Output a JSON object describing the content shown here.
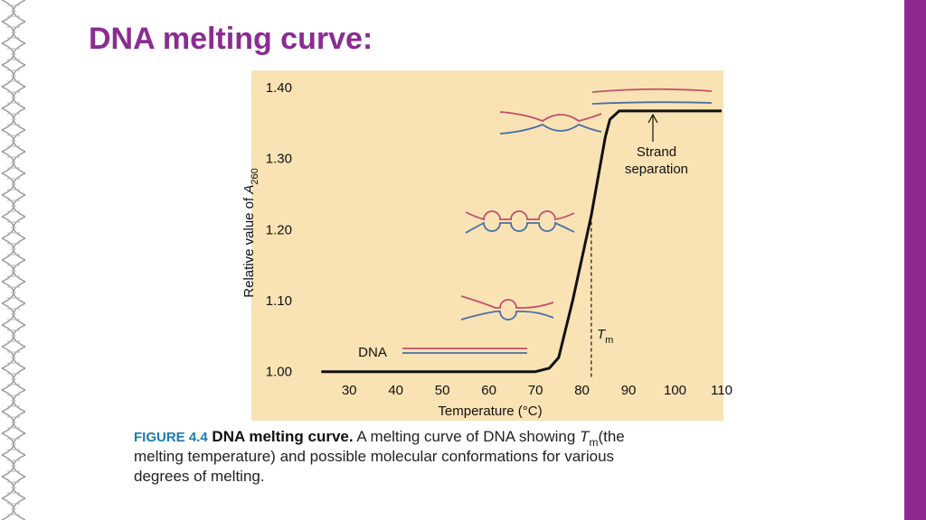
{
  "slide_title": "DNA melting curve:",
  "chart_data": {
    "type": "line",
    "xlabel": "Temperature (°C)",
    "ylabel": {
      "text": "Relative value of",
      "symbol": "A",
      "subscript": "260"
    },
    "x": [
      24,
      70,
      73,
      75,
      78,
      82,
      85,
      86,
      88,
      110
    ],
    "series": [
      {
        "color": "#111111",
        "values": [
          1.0,
          1.0,
          1.005,
          1.02,
          1.1,
          1.22,
          1.33,
          1.355,
          1.367,
          1.367
        ]
      }
    ],
    "xlim": [
      22,
      110
    ],
    "ylim": [
      0.992,
      1.424
    ],
    "xticks": [
      30,
      40,
      50,
      60,
      70,
      80,
      90,
      100,
      110
    ],
    "yticks": [
      {
        "value": 1.0,
        "label": "1.00"
      },
      {
        "value": 1.1,
        "label": "1.10"
      },
      {
        "value": 1.2,
        "label": "1.20"
      },
      {
        "value": 1.3,
        "label": "1.30"
      },
      {
        "value": 1.4,
        "label": "1.40"
      }
    ],
    "tm": {
      "x": 82,
      "y": 1.22,
      "symbol": "T",
      "subscript": "m"
    },
    "annotations": {
      "strand": [
        "Strand",
        "separation"
      ],
      "dna": "DNA"
    }
  },
  "caption": {
    "label": "FIGURE 4.4",
    "title": "DNA melting curve.",
    "text": "A melting curve of DNA showing",
    "symbol": "T",
    "subscript": "m",
    "lines": [
      "(the",
      "melting temperature) and possible molecular conformations for various",
      "degrees of melting."
    ]
  }
}
